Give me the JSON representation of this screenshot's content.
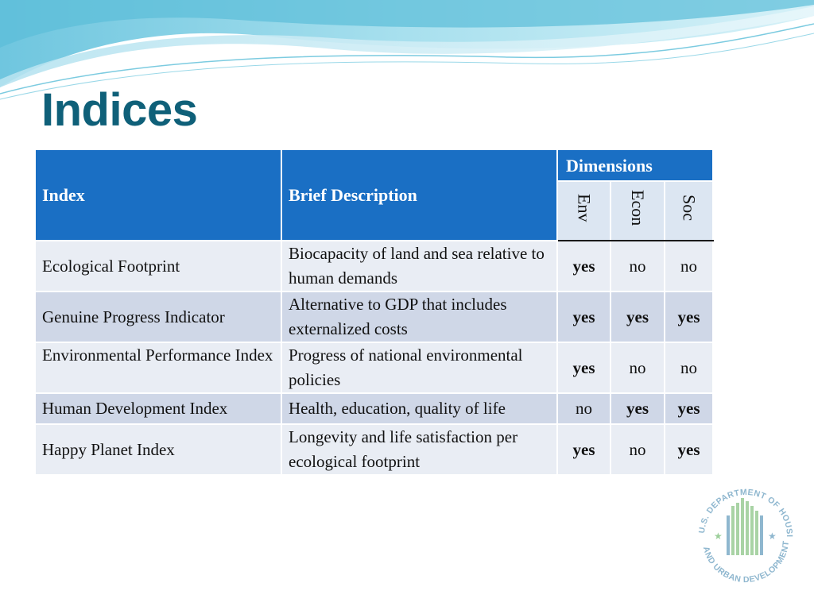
{
  "slide": {
    "title": "Indices"
  },
  "table": {
    "headers": {
      "index": "Index",
      "description": "Brief Description",
      "dimensions": "Dimensions",
      "env": "Env",
      "econ": "Econ",
      "soc": "Soc"
    },
    "rows": [
      {
        "index": "Ecological Footprint",
        "description": "Biocapacity of land and sea relative to human demands",
        "env": "yes",
        "econ": "no",
        "soc": "no"
      },
      {
        "index": "Genuine Progress Indicator",
        "description": "Alternative to GDP that includes externalized costs",
        "env": "yes",
        "econ": "yes",
        "soc": "yes"
      },
      {
        "index": "Environmental Performance Index",
        "description": "Progress of national environmental policies",
        "env": "yes",
        "econ": "no",
        "soc": "no"
      },
      {
        "index": "Human Development Index",
        "description": "Health, education, quality of life",
        "env": "no",
        "econ": "yes",
        "soc": "yes"
      },
      {
        "index": "Happy Planet Index",
        "description": "Longevity and life satisfaction per ecological footprint",
        "env": "yes",
        "econ": "no",
        "soc": "yes"
      }
    ]
  },
  "logo": {
    "text": "U.S. DEPARTMENT OF HOUSING AND URBAN DEVELOPMENT",
    "icon": "hud-seal-icon"
  },
  "colors": {
    "title": "#0f6079",
    "header_bg": "#1a6fc4",
    "row_light": "#e9edf4",
    "row_dark": "#cfd7e7"
  }
}
